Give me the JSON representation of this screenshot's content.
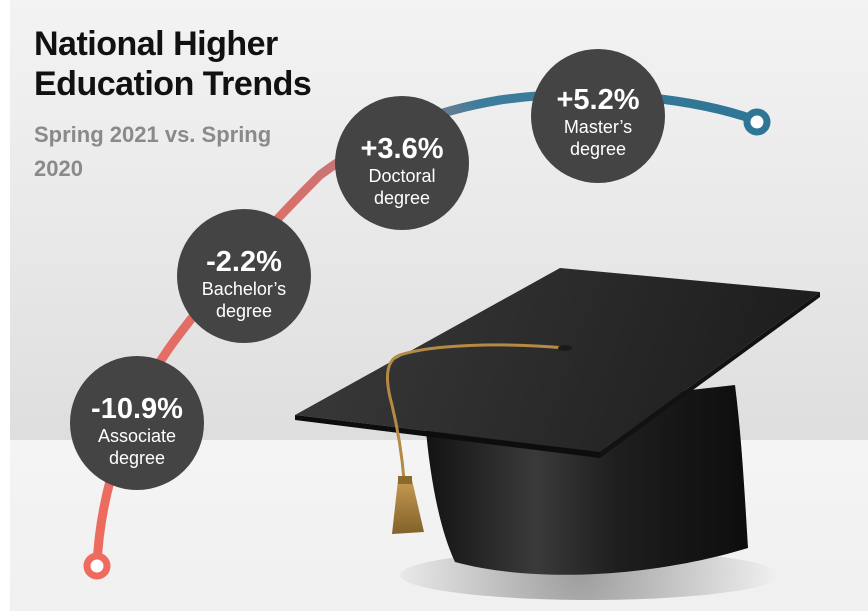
{
  "title": "National Higher Education Trends",
  "subtitle": "Spring 2021 vs. Spring 2020",
  "chart_data": {
    "type": "bubble-path",
    "unit": "%",
    "categories": [
      "Associate degree",
      "Bachelor's degree",
      "Doctoral degree",
      "Master's degree"
    ],
    "values": [
      -10.9,
      -2.2,
      3.6,
      5.2
    ],
    "value_labels": [
      "-10.9%",
      "-2.2%",
      "+3.6%",
      "+5.2%"
    ],
    "category_lines": [
      [
        "Associate",
        "degree"
      ],
      [
        "Bachelor’s",
        "degree"
      ],
      [
        "Doctoral",
        "degree"
      ],
      [
        "Master’s",
        "degree"
      ]
    ],
    "colors": {
      "negative": "#ee6b5e",
      "transition": "#c9737a",
      "positive": "#2f7595",
      "bubble": "#444444"
    }
  }
}
